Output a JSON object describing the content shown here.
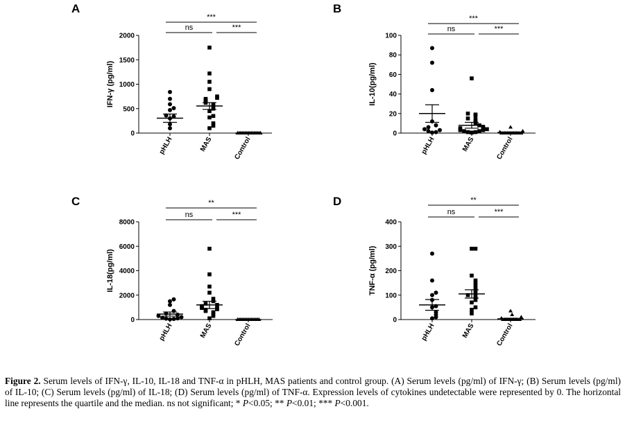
{
  "chart_data": [
    {
      "panel": "A",
      "type": "scatter",
      "ylabel": "IFN-γ (pg/ml)",
      "categories": [
        "pHLH",
        "MAS",
        "Control"
      ],
      "ylim": [
        0,
        2000
      ],
      "yticks": [
        0,
        500,
        1000,
        1500,
        2000
      ],
      "points": [
        [
          100,
          180,
          300,
          340,
          360,
          470,
          510,
          590,
          700,
          840
        ],
        [
          100,
          150,
          200,
          320,
          350,
          450,
          500,
          550,
          580,
          620,
          650,
          680,
          700,
          720,
          750,
          900,
          1050,
          1220,
          1750
        ],
        [
          0,
          0,
          0,
          0,
          0,
          0,
          0,
          0,
          0,
          0,
          0,
          0,
          0,
          0,
          0,
          0
        ]
      ],
      "means": [
        305,
        555,
        0
      ],
      "sems": [
        85,
        70,
        0
      ],
      "comparisons": [
        {
          "from": 0,
          "to": 1,
          "label": "ns"
        },
        {
          "from": 1,
          "to": 2,
          "label": "***"
        },
        {
          "from": 0,
          "to": 2,
          "label": "***"
        }
      ]
    },
    {
      "panel": "B",
      "type": "scatter",
      "ylabel": "IL-10(pg/ml)",
      "categories": [
        "pHLH",
        "MAS",
        "Control"
      ],
      "ylim": [
        0,
        100
      ],
      "yticks": [
        0,
        20,
        40,
        60,
        80,
        100
      ],
      "points": [
        [
          0.5,
          1,
          2,
          3,
          4,
          6,
          8,
          12,
          44,
          72,
          87
        ],
        [
          0.5,
          1,
          1,
          2,
          2,
          3,
          3,
          4,
          5,
          5,
          6,
          8,
          10,
          12,
          14,
          15,
          18,
          19,
          20,
          56
        ],
        [
          0,
          0,
          0,
          0,
          0,
          0,
          0,
          0,
          0,
          0,
          0,
          0,
          0,
          0,
          1,
          2,
          6
        ]
      ],
      "means": [
        20,
        8,
        0.5
      ],
      "sems": [
        9,
        3,
        0.4
      ],
      "comparisons": [
        {
          "from": 0,
          "to": 1,
          "label": "ns"
        },
        {
          "from": 1,
          "to": 2,
          "label": "***"
        },
        {
          "from": 0,
          "to": 2,
          "label": "***"
        }
      ]
    },
    {
      "panel": "C",
      "type": "scatter",
      "ylabel": "IL-18(pg/ml)",
      "categories": [
        "pHLH",
        "MAS",
        "Control"
      ],
      "ylim": [
        0,
        8000
      ],
      "yticks": [
        0,
        2000,
        4000,
        6000,
        8000
      ],
      "points": [
        [
          20,
          50,
          80,
          100,
          150,
          200,
          300,
          400,
          500,
          700,
          1200,
          1500,
          1650
        ],
        [
          100,
          300,
          500,
          600,
          700,
          800,
          850,
          900,
          950,
          1000,
          1100,
          1200,
          1300,
          1500,
          1700,
          2200,
          2700,
          3700,
          5800
        ],
        [
          0,
          0,
          0,
          0,
          0,
          0,
          0,
          0,
          0,
          0,
          0,
          0,
          0,
          0,
          0
        ]
      ],
      "means": [
        450,
        1200,
        0
      ],
      "sems": [
        170,
        300,
        0
      ],
      "comparisons": [
        {
          "from": 0,
          "to": 1,
          "label": "ns"
        },
        {
          "from": 1,
          "to": 2,
          "label": "***"
        },
        {
          "from": 0,
          "to": 2,
          "label": "**"
        }
      ]
    },
    {
      "panel": "D",
      "type": "scatter",
      "ylabel": "TNF-α (pg/ml)",
      "categories": [
        "pHLH",
        "MAS",
        "Control"
      ],
      "ylim": [
        0,
        400
      ],
      "yticks": [
        0,
        100,
        200,
        300,
        400
      ],
      "points": [
        [
          5,
          10,
          20,
          30,
          50,
          55,
          80,
          100,
          110,
          160,
          270
        ],
        [
          25,
          40,
          50,
          70,
          80,
          90,
          95,
          100,
          110,
          120,
          130,
          140,
          150,
          160,
          180,
          290,
          290
        ],
        [
          0,
          0,
          0,
          0,
          0,
          0,
          0,
          0,
          0,
          0,
          0,
          0,
          5,
          10,
          20,
          35
        ]
      ],
      "means": [
        60,
        105,
        3
      ],
      "sems": [
        22,
        17,
        2
      ],
      "comparisons": [
        {
          "from": 0,
          "to": 1,
          "label": "ns"
        },
        {
          "from": 1,
          "to": 2,
          "label": "***"
        },
        {
          "from": 0,
          "to": 2,
          "label": "**"
        }
      ]
    }
  ],
  "caption": {
    "figure_label": "Figure 2.",
    "text_1": " Serum levels of IFN-γ, IL-10, IL-18 and TNF-α in pHLH, MAS patients and control group. (A) Serum levels (pg/ml) of IFN-γ; (B) Serum levels (pg/ml) of IL-10; (C) Serum levels (pg/ml) of IL-18; (D) Serum levels (pg/ml) of TNF-α. Expression levels of cytokines undetectable were represented by 0. The horizontal line represents the quartile and the median. ns not significant; * ",
    "p1": "P",
    "text_2": "<0.05; ** ",
    "p2": "P",
    "text_3": "<0.01; *** ",
    "p3": "P",
    "text_4": "<0.001."
  },
  "colors": {
    "marker": "#000000",
    "axis": "#000000",
    "background": "#ffffff"
  }
}
